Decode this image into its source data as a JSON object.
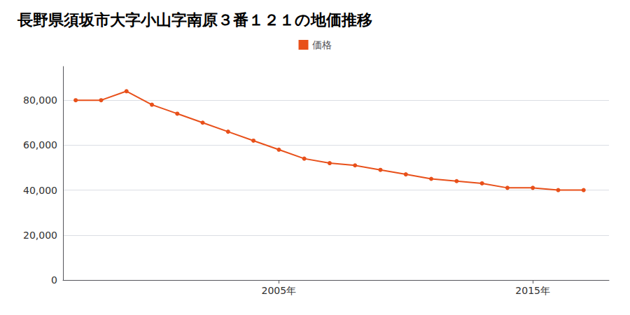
{
  "chart_data": {
    "type": "line",
    "title": "長野県須坂市大字小山字南原３番１２１の地価推移",
    "x": [
      1997,
      1998,
      1999,
      2000,
      2001,
      2002,
      2003,
      2004,
      2005,
      2006,
      2007,
      2008,
      2009,
      2010,
      2011,
      2012,
      2013,
      2014,
      2015,
      2016,
      2017
    ],
    "series": [
      {
        "name": "価格",
        "color": "#E8501A",
        "marker": "circle",
        "values": [
          80000,
          80000,
          84000,
          78000,
          74000,
          70000,
          66000,
          62000,
          58000,
          54000,
          52000,
          51000,
          49000,
          47000,
          45000,
          44000,
          43000,
          41000,
          41000,
          40000,
          40000
        ]
      }
    ],
    "xlim": [
      1996.5,
      2018
    ],
    "xticks": [
      {
        "value": 2005,
        "label": "2005年"
      },
      {
        "value": 2015,
        "label": "2015年"
      }
    ],
    "ylim": [
      0,
      95000
    ],
    "yticks": [
      0,
      {
        "value": 20000,
        "label": "20,000"
      },
      {
        "value": 40000,
        "label": "40,000"
      },
      {
        "value": 60000,
        "label": "60,000"
      },
      {
        "value": 80000,
        "label": "80,000"
      }
    ],
    "grid": true,
    "legend": "top"
  }
}
